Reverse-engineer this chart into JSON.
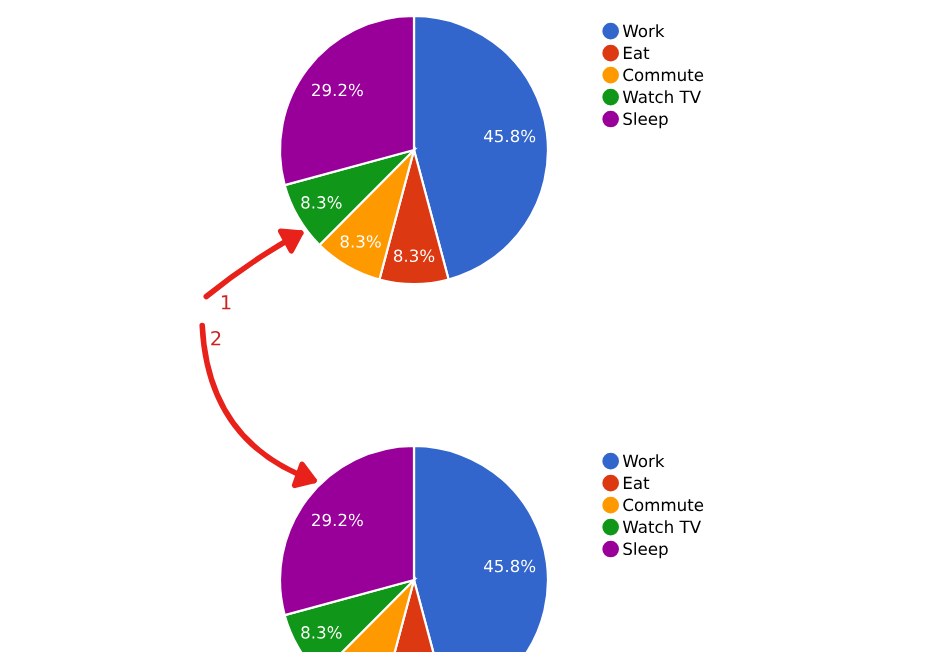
{
  "chart_data": [
    {
      "type": "pie",
      "categories": [
        "Work",
        "Eat",
        "Commute",
        "Watch TV",
        "Sleep"
      ],
      "values": [
        45.8,
        8.3,
        8.3,
        8.3,
        29.2
      ],
      "colors": [
        "#3366cc",
        "#dc3912",
        "#ff9900",
        "#109618",
        "#990099"
      ],
      "value_labels": [
        "45.8%",
        "8.3%",
        "8.3%",
        "8.3%",
        "29.2%"
      ],
      "legend": "right",
      "annotations": [
        "1",
        "2"
      ]
    },
    {
      "type": "pie",
      "categories": [
        "Work",
        "Eat",
        "Commute",
        "Watch TV",
        "Sleep"
      ],
      "values": [
        45.8,
        8.3,
        8.3,
        8.3,
        29.2
      ],
      "colors": [
        "#3366cc",
        "#dc3912",
        "#ff9900",
        "#109618",
        "#990099"
      ],
      "value_labels": [
        "45.8%",
        null,
        null,
        "8.3%",
        "29.2%"
      ],
      "legend": "right"
    }
  ]
}
